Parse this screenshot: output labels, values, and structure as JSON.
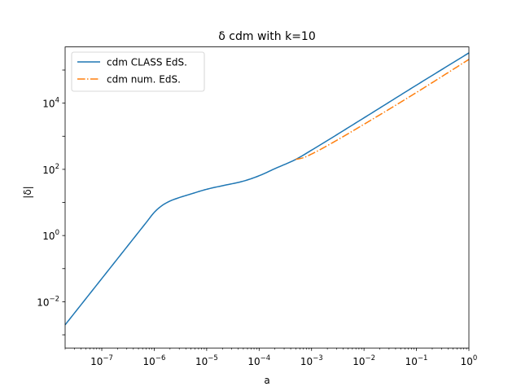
{
  "chart_data": {
    "type": "line",
    "title": "δ cdm with k=10",
    "xlabel": "a",
    "ylabel": "|δ|",
    "xscale": "log",
    "yscale": "log",
    "xlim": [
      2e-08,
      1
    ],
    "ylim": [
      0.0004,
      500000
    ],
    "grid": false,
    "legend_position": "top-left",
    "x_ticks": [
      {
        "value": 1e-07,
        "base": "10",
        "exp": "−7"
      },
      {
        "value": 1e-06,
        "base": "10",
        "exp": "−6"
      },
      {
        "value": 1e-05,
        "base": "10",
        "exp": "−5"
      },
      {
        "value": 0.0001,
        "base": "10",
        "exp": "−4"
      },
      {
        "value": 0.001,
        "base": "10",
        "exp": "−3"
      },
      {
        "value": 0.01,
        "base": "10",
        "exp": "−2"
      },
      {
        "value": 0.1,
        "base": "10",
        "exp": "−1"
      },
      {
        "value": 1,
        "base": "10",
        "exp": "0"
      }
    ],
    "y_ticks": [
      {
        "value": 0.01,
        "base": "10",
        "exp": "−2"
      },
      {
        "value": 1,
        "base": "10",
        "exp": "0"
      },
      {
        "value": 100,
        "base": "10",
        "exp": "2"
      },
      {
        "value": 10000,
        "base": "10",
        "exp": "4"
      }
    ],
    "series": [
      {
        "name": "cdm CLASS EdS.",
        "color": "#1f77b4",
        "style": "solid",
        "x": [
          2e-08,
          5e-08,
          1e-07,
          2e-07,
          4e-07,
          7e-07,
          1e-06,
          1.4e-06,
          2e-06,
          3e-06,
          5e-06,
          1e-05,
          2e-05,
          5e-05,
          0.0001,
          0.0002,
          0.0005,
          0.001,
          0.01,
          0.1,
          1
        ],
        "y": [
          0.002,
          0.0125,
          0.05,
          0.2,
          0.8,
          2.45,
          5.0,
          8.0,
          11.0,
          14.0,
          18.0,
          25.0,
          32.0,
          44.0,
          64.0,
          105.0,
          200.0,
          380.0,
          3600.0,
          35000.0,
          330000.0
        ]
      },
      {
        "name": "cdm num. EdS.",
        "color": "#ff7f0e",
        "style": "dashdot",
        "x": [
          0.0005,
          0.0007,
          0.001,
          0.002,
          0.01,
          0.1,
          1
        ],
        "y": [
          200.0,
          225.0,
          290.0,
          520.0,
          2300.0,
          21000.0,
          210000.0
        ]
      }
    ]
  }
}
